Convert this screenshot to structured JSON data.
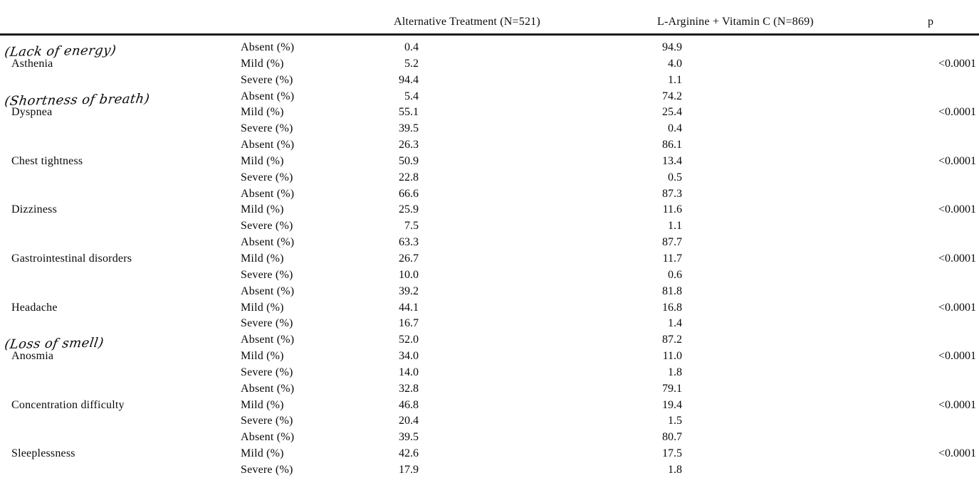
{
  "table": {
    "headers": {
      "treatment1": "Alternative Treatment (N=521)",
      "treatment2": "L-Arginine + Vitamin C (N=869)",
      "p": "p"
    },
    "severity_labels": [
      "Absent (%)",
      "Mild (%)",
      "Severe (%)"
    ],
    "rows": [
      {
        "symptom": "Asthenia",
        "annotation": "(Lack of energy)",
        "values1": [
          "0.4",
          "5.2",
          "94.4"
        ],
        "values2": [
          "94.9",
          "4.0",
          "1.1"
        ],
        "p": "<0.0001"
      },
      {
        "symptom": "Dyspnea",
        "annotation": "(Shortness of breath)",
        "values1": [
          "5.4",
          "55.1",
          "39.5"
        ],
        "values2": [
          "74.2",
          "25.4",
          "0.4"
        ],
        "p": "<0.0001"
      },
      {
        "symptom": "Chest tightness",
        "annotation": null,
        "values1": [
          "26.3",
          "50.9",
          "22.8"
        ],
        "values2": [
          "86.1",
          "13.4",
          "0.5"
        ],
        "p": "<0.0001"
      },
      {
        "symptom": "Dizziness",
        "annotation": null,
        "values1": [
          "66.6",
          "25.9",
          "7.5"
        ],
        "values2": [
          "87.3",
          "11.6",
          "1.1"
        ],
        "p": "<0.0001"
      },
      {
        "symptom": "Gastrointestinal disorders",
        "annotation": null,
        "values1": [
          "63.3",
          "26.7",
          "10.0"
        ],
        "values2": [
          "87.7",
          "11.7",
          "0.6"
        ],
        "p": "<0.0001"
      },
      {
        "symptom": "Headache",
        "annotation": null,
        "values1": [
          "39.2",
          "44.1",
          "16.7"
        ],
        "values2": [
          "81.8",
          "16.8",
          "1.4"
        ],
        "p": "<0.0001"
      },
      {
        "symptom": "Anosmia",
        "annotation": "(Loss of smell)",
        "values1": [
          "52.0",
          "34.0",
          "14.0"
        ],
        "values2": [
          "87.2",
          "11.0",
          "1.8"
        ],
        "p": "<0.0001"
      },
      {
        "symptom": "Concentration difficulty",
        "annotation": null,
        "values1": [
          "32.8",
          "46.8",
          "20.4"
        ],
        "values2": [
          "79.1",
          "19.4",
          "1.5"
        ],
        "p": "<0.0001"
      },
      {
        "symptom": "Sleeplessness",
        "annotation": null,
        "values1": [
          "39.5",
          "42.6",
          "17.9"
        ],
        "values2": [
          "80.7",
          "17.5",
          "1.8"
        ],
        "p": "<0.0001"
      }
    ]
  }
}
